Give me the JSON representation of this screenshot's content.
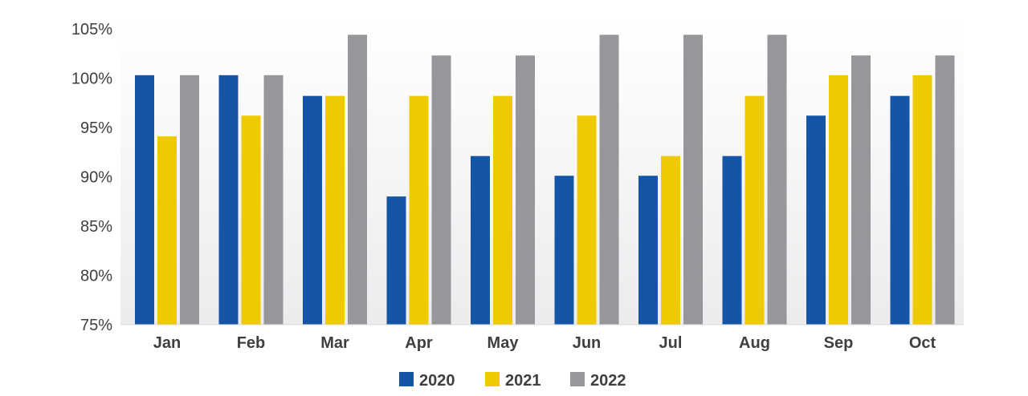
{
  "chart_data": {
    "type": "bar",
    "categories": [
      "Jan",
      "Feb",
      "Mar",
      "Apr",
      "May",
      "Jun",
      "Jul",
      "Aug",
      "Sep",
      "Oct"
    ],
    "series": [
      {
        "name": "2020",
        "color": "#1555a7",
        "values": [
          100.3,
          100.3,
          98.2,
          88.0,
          92.1,
          90.1,
          90.1,
          92.1,
          96.2,
          98.2
        ]
      },
      {
        "name": "2021",
        "color": "#f0ca00",
        "values": [
          94.1,
          96.2,
          98.2,
          98.2,
          98.2,
          96.2,
          92.1,
          98.2,
          100.3,
          100.3
        ]
      },
      {
        "name": "2022",
        "color": "#97979b",
        "values": [
          100.3,
          100.3,
          104.4,
          102.3,
          102.3,
          104.4,
          104.4,
          104.4,
          102.3,
          102.3
        ]
      }
    ],
    "yticks": [
      "75%",
      "80%",
      "85%",
      "90%",
      "95%",
      "100%",
      "105%"
    ],
    "ylim": [
      75,
      105
    ],
    "title": "",
    "xlabel": "",
    "ylabel": "",
    "grid": false,
    "legend_position": "bottom-center"
  }
}
